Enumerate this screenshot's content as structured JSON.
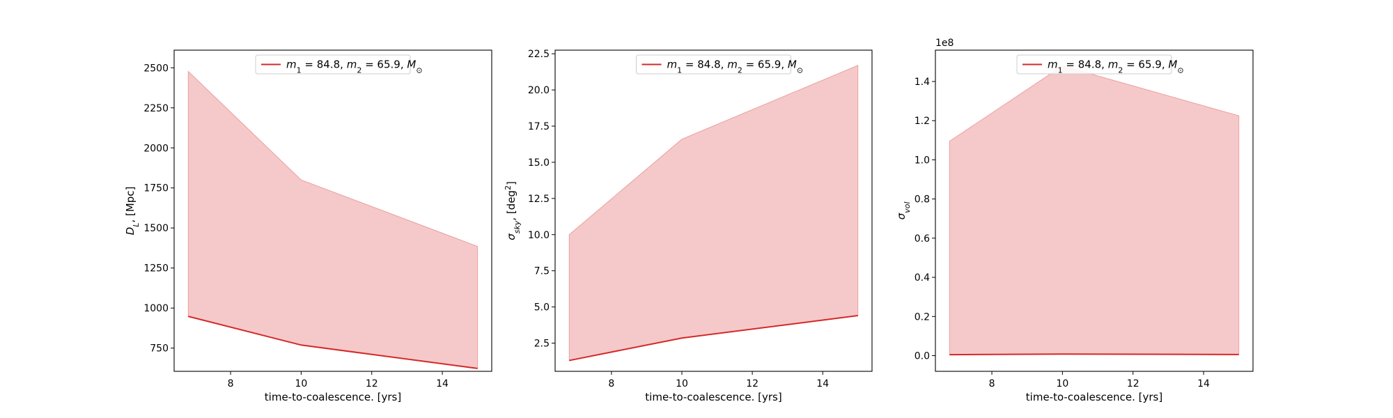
{
  "colors": {
    "line": "#d62728",
    "fill": "#d62728",
    "fill_alpha": 0.25,
    "axes": "#000000"
  },
  "chart_data": [
    {
      "type": "area",
      "xlabel": "time-to-coalescence. [yrs]",
      "ylabel": "D_L, [Mpc]",
      "ylabel_parts": [
        {
          "t": "D",
          "style": "italic"
        },
        {
          "t": "L",
          "style": "sub-italic"
        },
        {
          "t": ", [Mpc]",
          "style": "normal"
        }
      ],
      "xlim": [
        6.4,
        15.4
      ],
      "ylim": [
        605,
        2610
      ],
      "xticks": [
        8,
        10,
        12,
        14
      ],
      "xtick_labels": [
        "8",
        "10",
        "12",
        "14"
      ],
      "yticks": [
        750,
        1000,
        1250,
        1500,
        1750,
        2000,
        2250,
        2500
      ],
      "ytick_labels": [
        "750",
        "1000",
        "1250",
        "1500",
        "1750",
        "2000",
        "2250",
        "2500"
      ],
      "offset_text": "",
      "x": [
        6.8,
        10,
        15
      ],
      "line": [
        948,
        769,
        623
      ],
      "band_upper": [
        2478,
        1800,
        1385
      ],
      "band_lower": [
        948,
        769,
        623
      ],
      "legend": "m_1 = 84.8, m_2 = 65.9, M_⊙",
      "legend_loc": "upper center",
      "grid": false
    },
    {
      "type": "area",
      "xlabel": "time-to-coalescence. [yrs]",
      "ylabel": "σ_sky, [deg^2]",
      "ylabel_parts": [
        {
          "t": "σ",
          "style": "italic"
        },
        {
          "t": "sky",
          "style": "sub-italic"
        },
        {
          "t": ", [deg",
          "style": "normal"
        },
        {
          "t": "2",
          "style": "sup"
        },
        {
          "t": "]",
          "style": "normal"
        }
      ],
      "xlim": [
        6.4,
        15.4
      ],
      "ylim": [
        0.55,
        22.75
      ],
      "xticks": [
        8,
        10,
        12,
        14
      ],
      "xtick_labels": [
        "8",
        "10",
        "12",
        "14"
      ],
      "yticks": [
        2.5,
        5.0,
        7.5,
        10.0,
        12.5,
        15.0,
        17.5,
        20.0,
        22.5
      ],
      "ytick_labels": [
        "2.5",
        "5.0",
        "7.5",
        "10.0",
        "12.5",
        "15.0",
        "17.5",
        "20.0",
        "22.5"
      ],
      "offset_text": "",
      "x": [
        6.8,
        10,
        15
      ],
      "line": [
        1.3,
        2.85,
        4.4
      ],
      "band_upper": [
        10.0,
        16.6,
        21.7
      ],
      "band_lower": [
        1.3,
        2.85,
        4.4
      ],
      "legend": "m_1 = 84.8, m_2 = 65.9, M_⊙",
      "legend_loc": "upper center",
      "grid": false
    },
    {
      "type": "area",
      "xlabel": "time-to-coalescence. [yrs]",
      "ylabel": "σ_vol",
      "ylabel_parts": [
        {
          "t": "σ",
          "style": "italic"
        },
        {
          "t": "vol",
          "style": "sub-italic"
        }
      ],
      "xlim": [
        6.4,
        15.4
      ],
      "ylim": [
        -0.08,
        1.56
      ],
      "xticks": [
        8,
        10,
        12,
        14
      ],
      "xtick_labels": [
        "8",
        "10",
        "12",
        "14"
      ],
      "yticks": [
        0.0,
        0.2,
        0.4,
        0.6,
        0.8,
        1.0,
        1.2,
        1.4
      ],
      "ytick_labels": [
        "0.0",
        "0.2",
        "0.4",
        "0.6",
        "0.8",
        "1.0",
        "1.2",
        "1.4"
      ],
      "offset_text": "1e8",
      "x": [
        6.8,
        10,
        15
      ],
      "line": [
        0.005,
        0.008,
        0.006
      ],
      "band_upper": [
        1.095,
        1.48,
        1.225
      ],
      "band_lower": [
        0.005,
        0.008,
        0.006
      ],
      "legend": "m_1 = 84.8, m_2 = 65.9, M_⊙",
      "legend_loc": "upper center",
      "grid": false
    }
  ]
}
